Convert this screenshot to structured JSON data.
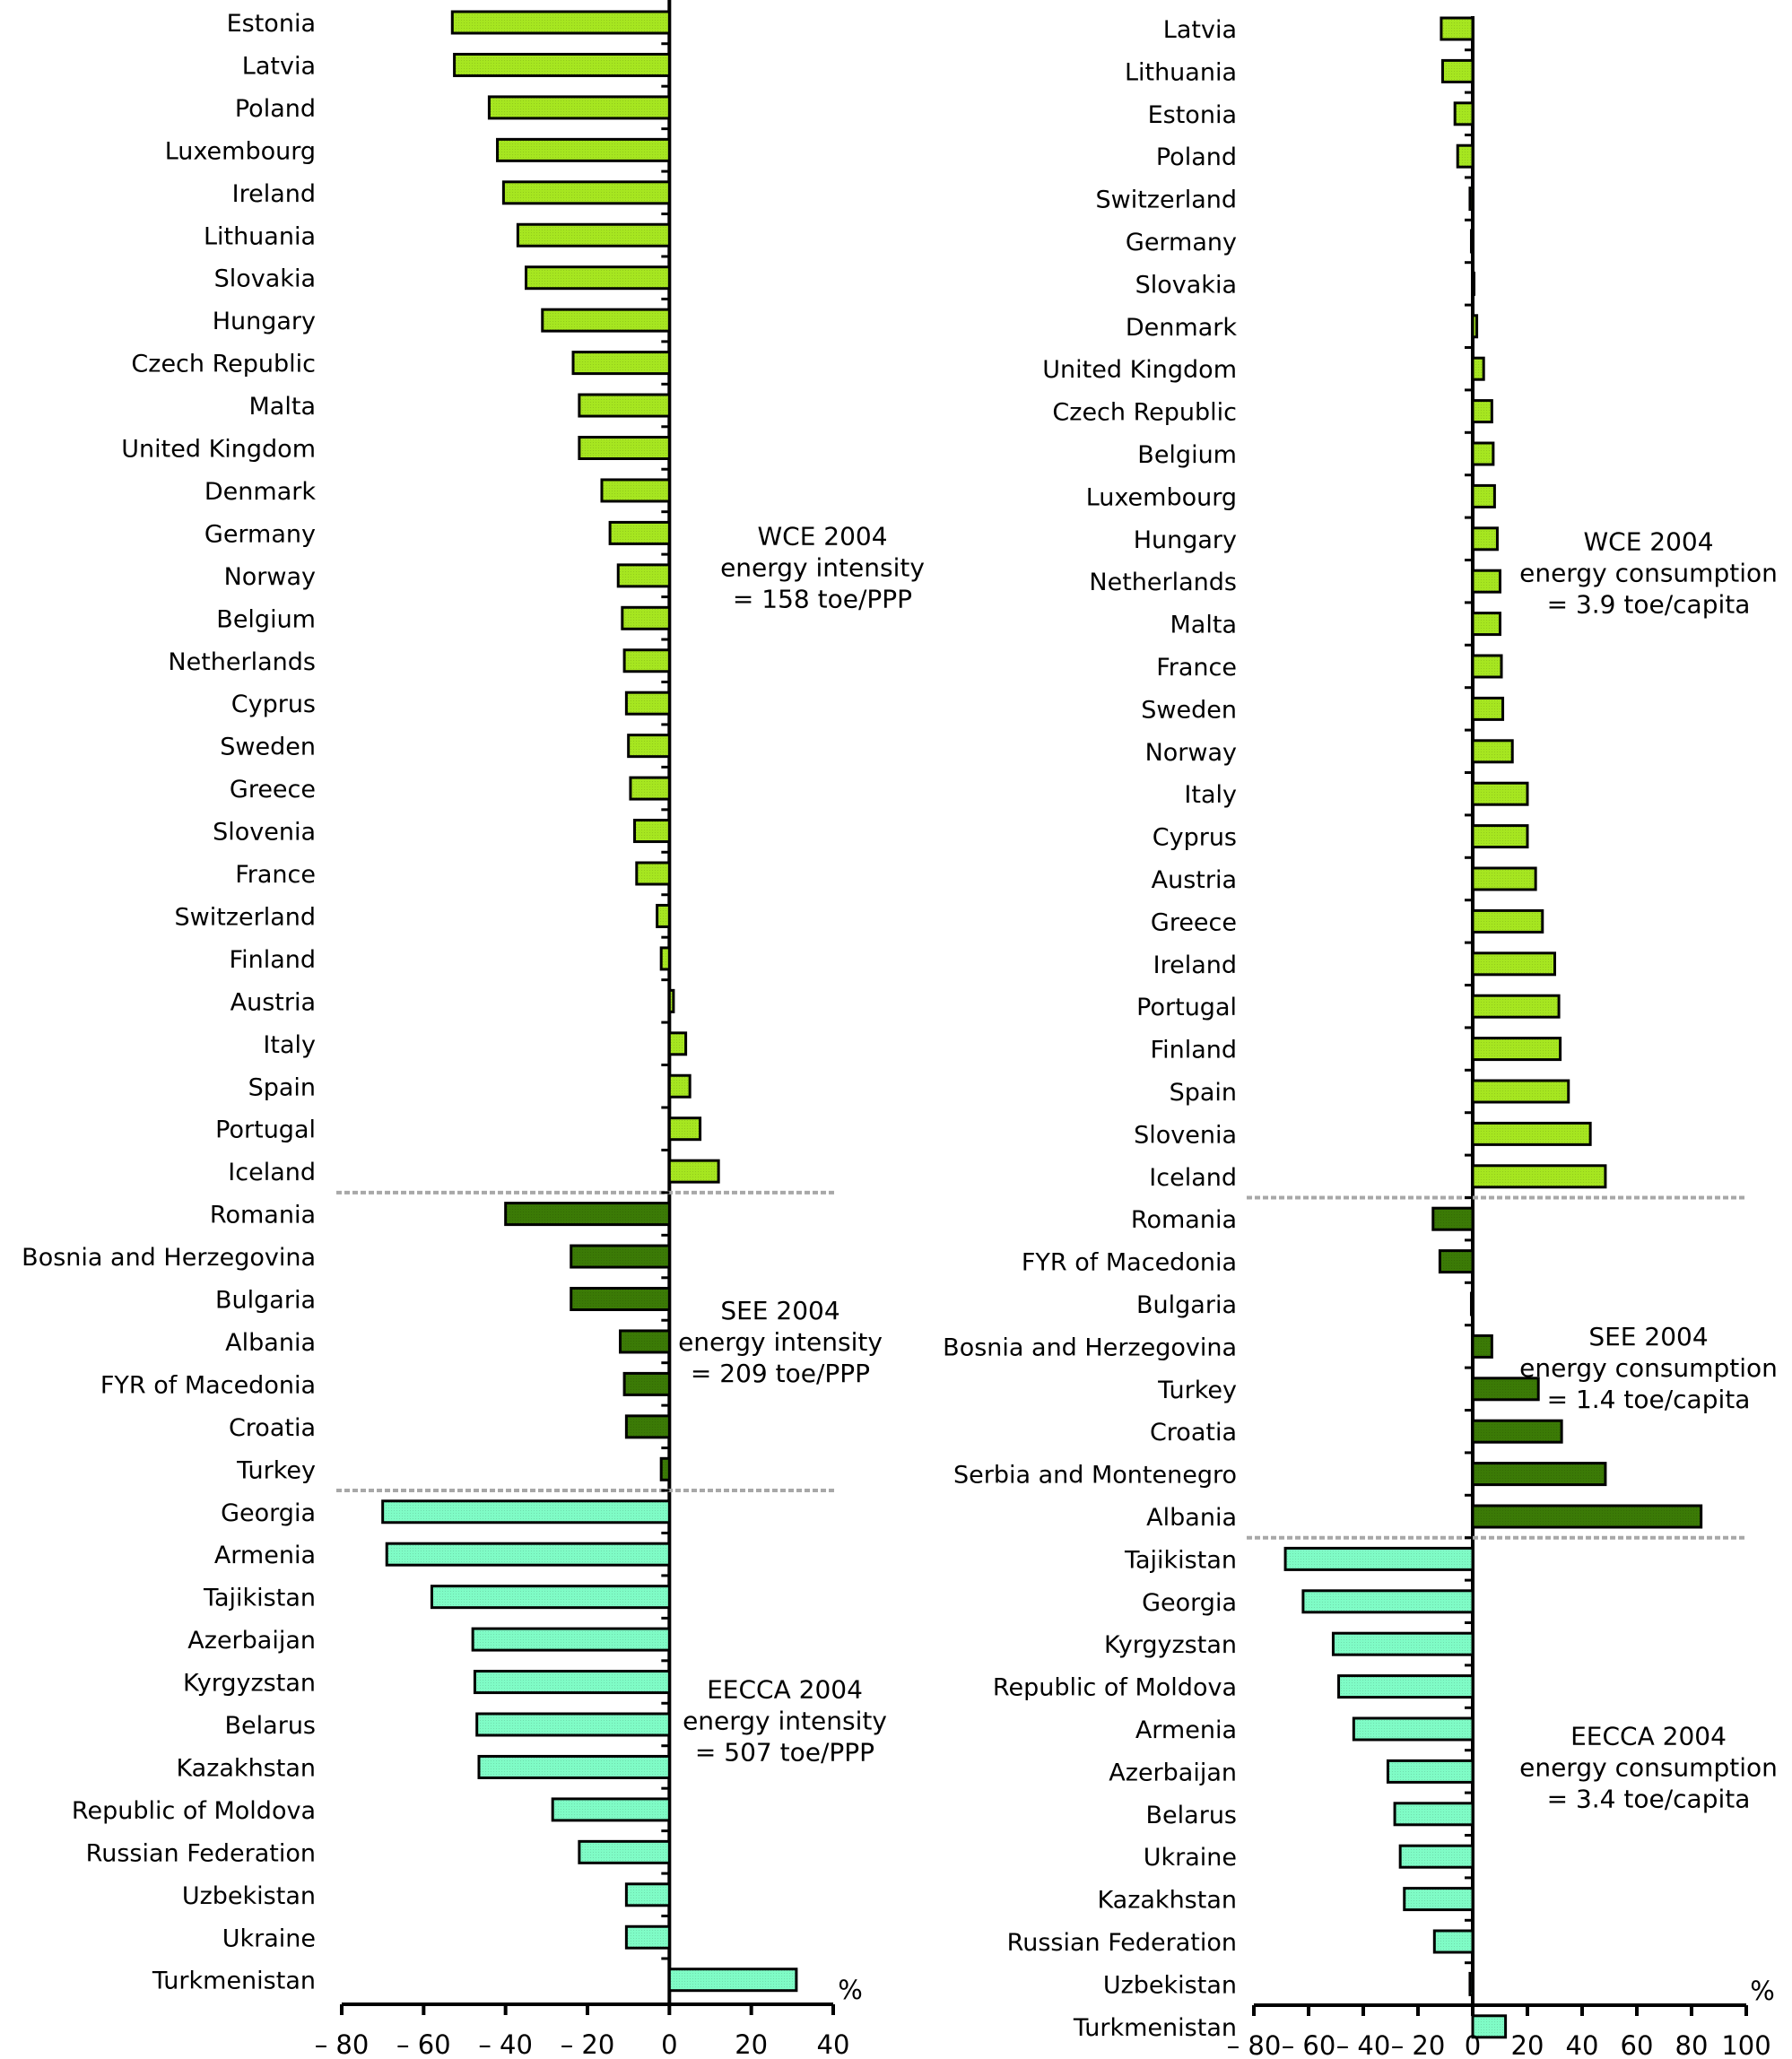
{
  "colors": {
    "WCE": "#a6e620",
    "SEE": "#3b7a06",
    "EECCA": "#7ffcc6",
    "separator": "#a8a8a8",
    "bar_border": "#000000"
  },
  "chart_data": [
    {
      "type": "bar",
      "orientation": "horizontal",
      "title": "",
      "xlabel": "%",
      "ylabel": "",
      "xlim": [
        -80,
        40
      ],
      "xticks": [
        -80,
        -60,
        -40,
        -20,
        0,
        20,
        40
      ],
      "xtick_labels": [
        "– 80",
        "– 60",
        "– 40",
        "– 20",
        "0",
        "20",
        "40"
      ],
      "unit_label": "%",
      "grid": false,
      "groups": [
        {
          "name": "WCE",
          "annotation": [
            "WCE 2004",
            "energy intensity",
            "= 158 toe/PPP"
          ],
          "categories": [
            "Estonia",
            "Latvia",
            "Poland",
            "Luxembourg",
            "Ireland",
            "Lithuania",
            "Slovakia",
            "Hungary",
            "Czech Republic",
            "Malta",
            "United Kingdom",
            "Denmark",
            "Germany",
            "Norway",
            "Belgium",
            "Netherlands",
            "Cyprus",
            "Sweden",
            "Greece",
            "Slovenia",
            "France",
            "Switzerland",
            "Finland",
            "Austria",
            "Italy",
            "Spain",
            "Portugal",
            "Iceland"
          ],
          "values": [
            -53,
            -52.5,
            -44,
            -42,
            -40.5,
            -37,
            -35,
            -31,
            -23.5,
            -22,
            -22,
            -16.5,
            -14.5,
            -12.5,
            -11.5,
            -11,
            -10.5,
            -10,
            -9.5,
            -8.5,
            -8,
            -3,
            -2,
            1,
            4,
            5,
            7.5,
            12
          ]
        },
        {
          "name": "SEE",
          "annotation": [
            "SEE 2004",
            "energy intensity",
            "= 209 toe/PPP"
          ],
          "categories": [
            "Romania",
            "Bosnia and Herzegovina",
            "Bulgaria",
            "Albania",
            "FYR of Macedonia",
            "Croatia",
            "Turkey"
          ],
          "values": [
            -40,
            -24,
            -24,
            -12,
            -11,
            -10.5,
            -2
          ]
        },
        {
          "name": "EECCA",
          "annotation": [
            "EECCA 2004",
            "energy intensity",
            "= 507 toe/PPP"
          ],
          "categories": [
            "Georgia",
            "Armenia",
            "Tajikistan",
            "Azerbaijan",
            "Kyrgyzstan",
            "Belarus",
            "Kazakhstan",
            "Republic of Moldova",
            "Russian Federation",
            "Uzbekistan",
            "Ukraine",
            "Turkmenistan"
          ],
          "values": [
            -70,
            -69,
            -58,
            -48,
            -47.5,
            -47,
            -46.5,
            -28.5,
            -22,
            -10.5,
            -10.5,
            31
          ]
        }
      ]
    },
    {
      "type": "bar",
      "orientation": "horizontal",
      "title": "",
      "xlabel": "%",
      "ylabel": "",
      "xlim": [
        -80,
        100
      ],
      "xticks": [
        -80,
        -60,
        -40,
        -20,
        0,
        20,
        40,
        60,
        80,
        100
      ],
      "xtick_labels": [
        "– 80",
        "– 60",
        "– 40",
        "– 20",
        "0",
        "20",
        "40",
        "60",
        "80",
        "100"
      ],
      "unit_label": "%",
      "grid": false,
      "groups": [
        {
          "name": "WCE",
          "annotation": [
            "WCE 2004",
            "energy consumption",
            "= 3.9 toe/capita"
          ],
          "categories": [
            "Latvia",
            "Lithuania",
            "Estonia",
            "Poland",
            "Switzerland",
            "Germany",
            "Slovakia",
            "Denmark",
            "United Kingdom",
            "Czech Republic",
            "Belgium",
            "Luxembourg",
            "Hungary",
            "Netherlands",
            "Malta",
            "France",
            "Sweden",
            "Norway",
            "Italy",
            "Cyprus",
            "Austria",
            "Greece",
            "Ireland",
            "Portugal",
            "Finland",
            "Spain",
            "Slovenia",
            "Iceland"
          ],
          "values": [
            -11.5,
            -11,
            -6.5,
            -5.5,
            -1,
            -0.5,
            0,
            1.5,
            4,
            7,
            7.5,
            8,
            9,
            10,
            10,
            10.5,
            11,
            14.5,
            20,
            20,
            23,
            25.5,
            30,
            31.5,
            32,
            35,
            43,
            48.5
          ]
        },
        {
          "name": "SEE",
          "annotation": [
            "SEE 2004",
            "energy consumption",
            "= 1.4 toe/capita"
          ],
          "categories": [
            "Romania",
            "FYR of Macedonia",
            "Bulgaria",
            "Bosnia and Herzegovina",
            "Turkey",
            "Croatia",
            "Serbia and Montenegro",
            "Albania"
          ],
          "values": [
            -14.5,
            -12,
            -0.5,
            7,
            24,
            32.5,
            48.5,
            83.5
          ]
        },
        {
          "name": "EECCA",
          "annotation": [
            "EECCA 2004",
            "energy consumption",
            "= 3.4 toe/capita"
          ],
          "categories": [
            "Tajikistan",
            "Georgia",
            "Kyrgyzstan",
            "Republic of Moldova",
            "Armenia",
            "Azerbaijan",
            "Belarus",
            "Ukraine",
            "Kazakhstan",
            "Russian Federation",
            "Uzbekistan",
            "Turkmenistan"
          ],
          "values": [
            -68.5,
            -62,
            -51,
            -49,
            -43.5,
            -31,
            -28.5,
            -26.5,
            -25,
            -14,
            -1,
            12
          ]
        }
      ]
    }
  ]
}
